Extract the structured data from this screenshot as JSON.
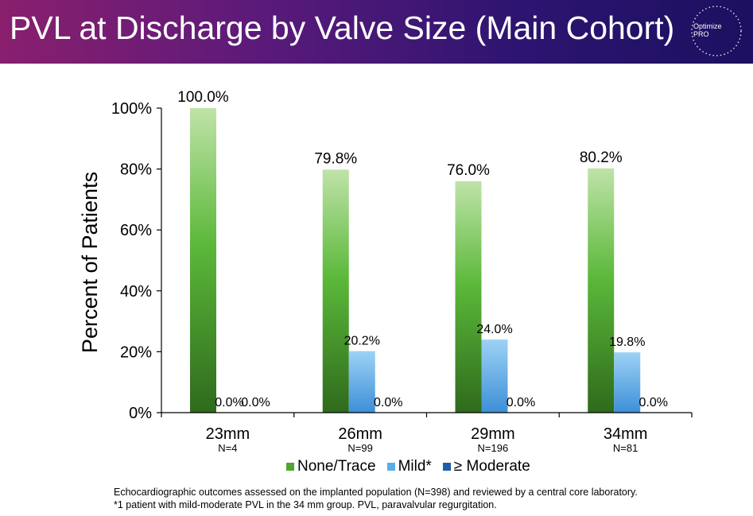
{
  "header": {
    "title": "PVL at Discharge by Valve Size (Main Cohort)",
    "logo_line1": "Optimize",
    "logo_line2": "PRO"
  },
  "chart_data": {
    "type": "bar",
    "title": "",
    "ylabel": "Percent of Patients",
    "ylim": [
      0,
      100
    ],
    "yticks": [
      "0%",
      "20%",
      "40%",
      "60%",
      "80%",
      "100%"
    ],
    "categories": [
      "23mm",
      "26mm",
      "29mm",
      "34mm"
    ],
    "category_sublabels": [
      "N=4",
      "N=99",
      "N=196",
      "N=81"
    ],
    "series": [
      {
        "name": "None/Trace",
        "values": [
          100.0,
          79.8,
          76.0,
          80.2
        ],
        "labels": [
          "100.0%",
          "79.8%",
          "76.0%",
          "80.2%"
        ],
        "color": "#5bb83a"
      },
      {
        "name": "Mild*",
        "values": [
          0.0,
          20.2,
          24.0,
          19.8
        ],
        "labels": [
          "0.0%",
          "20.2%",
          "24.0%",
          "19.8%"
        ],
        "color": "#5aaee8"
      },
      {
        "name": "≥ Moderate",
        "values": [
          0.0,
          0.0,
          0.0,
          0.0
        ],
        "labels": [
          "0.0%",
          "0.0%",
          "0.0%",
          "0.0%"
        ],
        "color": "#1e5ea8"
      }
    ],
    "legend_position": "bottom",
    "grid": false
  },
  "footnotes": {
    "line1": "Echocardiographic outcomes assessed on the implanted population (N=398) and reviewed by a central core laboratory.",
    "line2": "*1 patient with mild-moderate PVL in the 34 mm group. PVL, paravalvular regurgitation."
  }
}
